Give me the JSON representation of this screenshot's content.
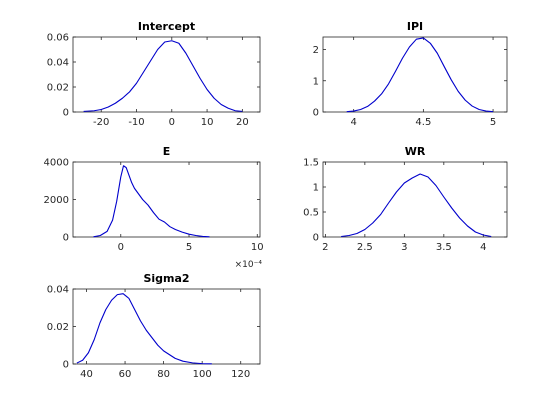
{
  "chart_data": [
    {
      "type": "line",
      "title": "Intercept",
      "xlim": [
        -28,
        25
      ],
      "ylim": [
        0,
        0.06
      ],
      "xticks": [
        -20,
        -10,
        0,
        10,
        20
      ],
      "xtick_labels": [
        "-20",
        "-10",
        "0",
        "10",
        "20"
      ],
      "yticks": [
        0,
        0.02,
        0.04,
        0.06
      ],
      "ytick_labels": [
        "0",
        "0.02",
        "0.04",
        "0.06"
      ],
      "exponent_label": "",
      "color": "#0000cc",
      "series": [
        {
          "x": [
            -25,
            -22,
            -20,
            -18,
            -16,
            -14,
            -12,
            -10,
            -8,
            -6,
            -4,
            -2,
            0,
            2,
            4,
            6,
            8,
            10,
            12,
            14,
            16,
            18,
            20
          ],
          "y": [
            0.0005,
            0.001,
            0.002,
            0.004,
            0.007,
            0.011,
            0.016,
            0.023,
            0.032,
            0.041,
            0.05,
            0.056,
            0.057,
            0.055,
            0.047,
            0.037,
            0.027,
            0.018,
            0.011,
            0.006,
            0.003,
            0.001,
            0.0005
          ]
        }
      ]
    },
    {
      "type": "line",
      "title": "IPI",
      "xlim": [
        3.78,
        5.1
      ],
      "ylim": [
        0,
        2.4
      ],
      "xticks": [
        4,
        4.5,
        5
      ],
      "xtick_labels": [
        "4",
        "4.5",
        "5"
      ],
      "yticks": [
        0,
        1,
        2
      ],
      "ytick_labels": [
        "0",
        "1",
        "2"
      ],
      "exponent_label": "",
      "color": "#0000cc",
      "series": [
        {
          "x": [
            3.95,
            4.0,
            4.05,
            4.1,
            4.15,
            4.2,
            4.25,
            4.3,
            4.35,
            4.4,
            4.45,
            4.5,
            4.55,
            4.6,
            4.65,
            4.7,
            4.75,
            4.8,
            4.85,
            4.9,
            4.95,
            5.0
          ],
          "y": [
            0.01,
            0.03,
            0.08,
            0.18,
            0.35,
            0.58,
            0.9,
            1.3,
            1.72,
            2.08,
            2.33,
            2.37,
            2.2,
            1.88,
            1.45,
            1.03,
            0.66,
            0.38,
            0.19,
            0.08,
            0.03,
            0.01
          ]
        }
      ]
    },
    {
      "type": "line",
      "title": "E",
      "xlim": [
        -3.5,
        10.2
      ],
      "ylim": [
        0,
        4000
      ],
      "xticks": [
        0,
        5,
        10
      ],
      "xtick_labels": [
        "0",
        "5",
        "10"
      ],
      "yticks": [
        0,
        2000,
        4000
      ],
      "ytick_labels": [
        "0",
        "2000",
        "4000"
      ],
      "exponent_label": "×10⁻⁴",
      "color": "#0000cc",
      "series": [
        {
          "x": [
            -2.0,
            -1.5,
            -1.0,
            -0.6,
            -0.3,
            0.0,
            0.2,
            0.4,
            0.6,
            0.8,
            1.0,
            1.3,
            1.6,
            2.0,
            2.4,
            2.8,
            3.2,
            3.6,
            4.0,
            4.5,
            5.0,
            5.5,
            6.0,
            6.5
          ],
          "y": [
            10,
            80,
            300,
            900,
            1900,
            3200,
            3800,
            3700,
            3300,
            2900,
            2600,
            2300,
            2000,
            1700,
            1300,
            950,
            800,
            550,
            400,
            260,
            150,
            80,
            30,
            10
          ]
        }
      ]
    },
    {
      "type": "line",
      "title": "WR",
      "xlim": [
        1.97,
        4.3
      ],
      "ylim": [
        0,
        1.5
      ],
      "xticks": [
        2,
        2.5,
        3,
        3.5,
        4
      ],
      "xtick_labels": [
        "2",
        "2.5",
        "3",
        "3.5",
        "4"
      ],
      "yticks": [
        0,
        0.5,
        1,
        1.5
      ],
      "ytick_labels": [
        "0",
        "0.5",
        "1",
        "1.5"
      ],
      "exponent_label": "",
      "color": "#0000cc",
      "series": [
        {
          "x": [
            2.2,
            2.3,
            2.4,
            2.5,
            2.6,
            2.7,
            2.8,
            2.9,
            3.0,
            3.1,
            3.2,
            3.3,
            3.4,
            3.5,
            3.6,
            3.7,
            3.8,
            3.9,
            4.0,
            4.1
          ],
          "y": [
            0.01,
            0.03,
            0.07,
            0.15,
            0.28,
            0.45,
            0.68,
            0.9,
            1.08,
            1.18,
            1.26,
            1.2,
            1.03,
            0.8,
            0.58,
            0.38,
            0.22,
            0.1,
            0.04,
            0.01
          ]
        }
      ]
    },
    {
      "type": "line",
      "title": "Sigma2",
      "xlim": [
        33,
        130
      ],
      "ylim": [
        0,
        0.04
      ],
      "xticks": [
        40,
        60,
        80,
        100,
        120
      ],
      "xtick_labels": [
        "40",
        "60",
        "80",
        "100",
        "120"
      ],
      "yticks": [
        0,
        0.02,
        0.04
      ],
      "ytick_labels": [
        "0",
        "0.02",
        "0.04"
      ],
      "exponent_label": "",
      "color": "#0000cc",
      "series": [
        {
          "x": [
            35,
            38,
            41,
            44,
            47,
            50,
            53,
            56,
            59,
            62,
            65,
            68,
            71,
            74,
            77,
            80,
            83,
            86,
            90,
            95,
            100,
            105
          ],
          "y": [
            0.0005,
            0.002,
            0.006,
            0.013,
            0.022,
            0.029,
            0.034,
            0.037,
            0.0375,
            0.035,
            0.029,
            0.023,
            0.018,
            0.014,
            0.01,
            0.007,
            0.005,
            0.003,
            0.0015,
            0.0006,
            0.0002,
            0.0001
          ]
        }
      ]
    }
  ]
}
